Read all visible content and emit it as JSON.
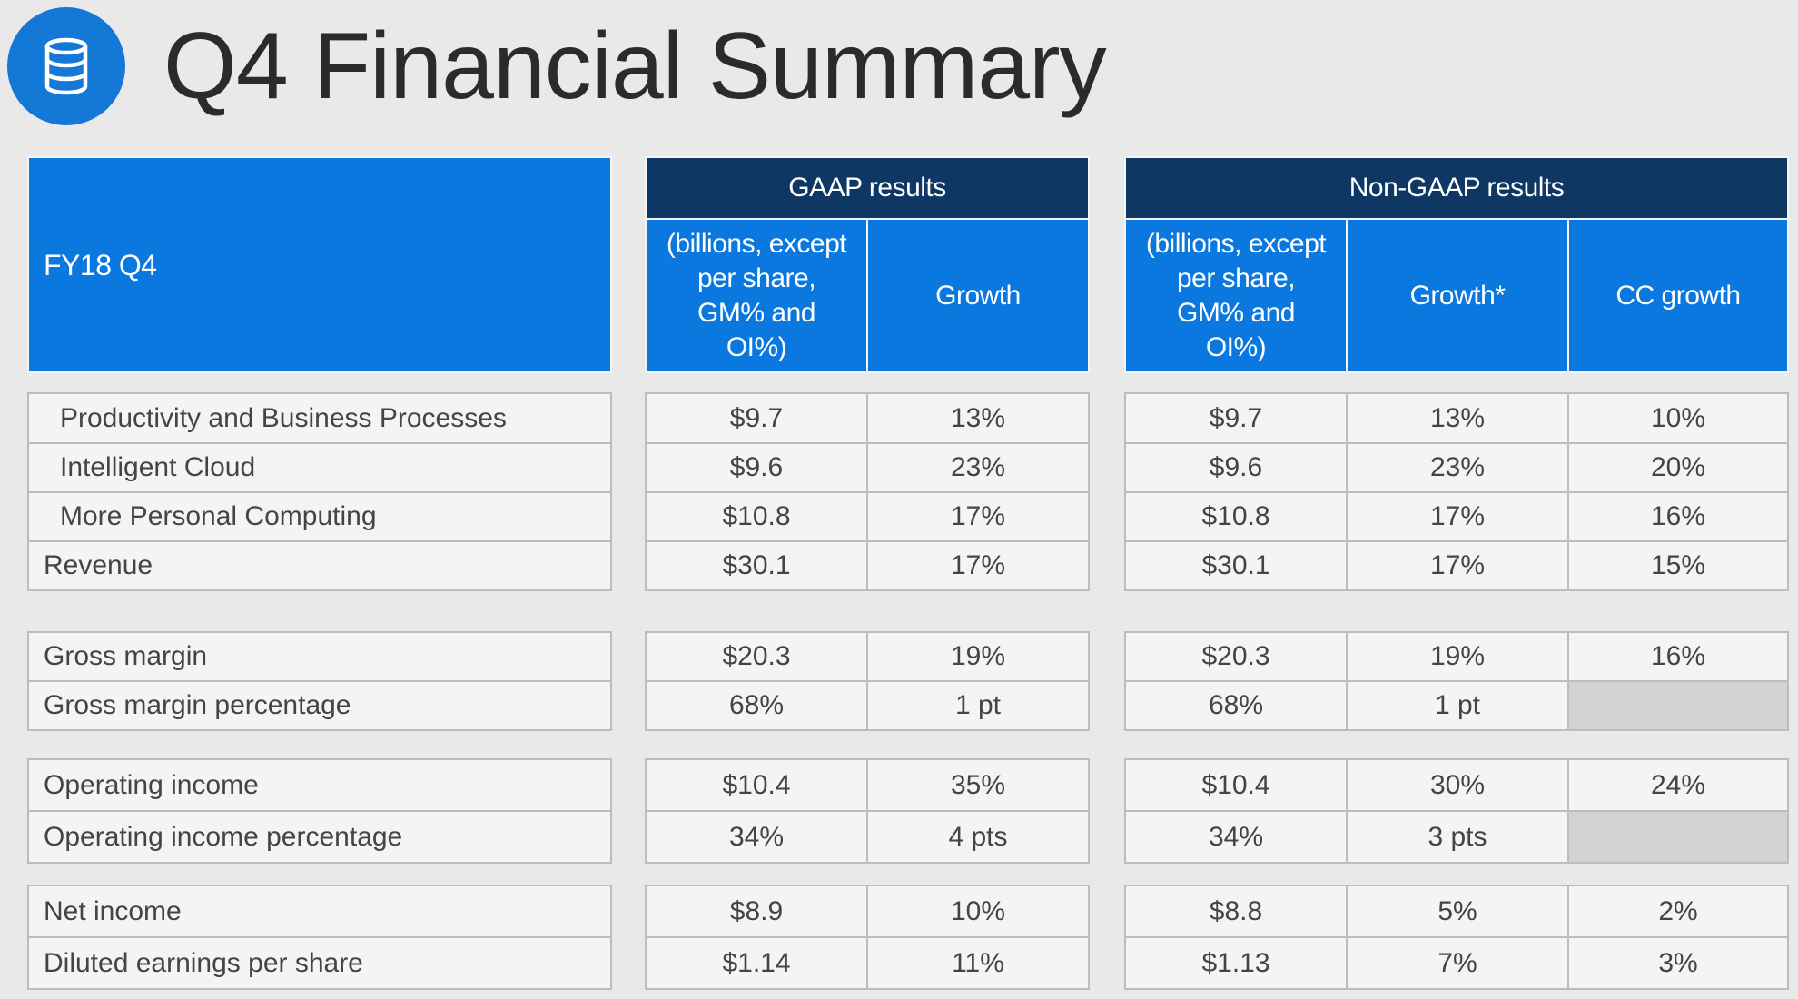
{
  "title": "Q4 Financial Summary",
  "logo_icon": "database-icon",
  "colors": {
    "accent_blue": "#0a78de",
    "dark_navy": "#0e3863",
    "logo_blue": "#1378d6"
  },
  "table": {
    "corner_label": "FY18 Q4",
    "gaap_header": "GAAP results",
    "nongaap_header": "Non-GAAP results",
    "gaap_col_amount": "(billions, except\nper share,\nGM% and\nOI%)",
    "gaap_col_growth": "Growth",
    "nongaap_col_amount": "(billions, except\nper share,\nGM% and\nOI%)",
    "nongaap_col_growth": "Growth*",
    "nongaap_col_cc": "CC growth",
    "rows": [
      {
        "label": "Productivity and Business Processes",
        "gaap_value": "$9.7",
        "gaap_growth": "13%",
        "nongaap_value": "$9.7",
        "nongaap_growth": "13%",
        "cc_growth": "10%"
      },
      {
        "label": "Intelligent Cloud",
        "gaap_value": "$9.6",
        "gaap_growth": "23%",
        "nongaap_value": "$9.6",
        "nongaap_growth": "23%",
        "cc_growth": "20%"
      },
      {
        "label": "More Personal Computing",
        "gaap_value": "$10.8",
        "gaap_growth": "17%",
        "nongaap_value": "$10.8",
        "nongaap_growth": "17%",
        "cc_growth": "16%"
      },
      {
        "label": "Revenue",
        "gaap_value": "$30.1",
        "gaap_growth": "17%",
        "nongaap_value": "$30.1",
        "nongaap_growth": "17%",
        "cc_growth": "15%"
      },
      {
        "label": "Gross margin",
        "gaap_value": "$20.3",
        "gaap_growth": "19%",
        "nongaap_value": "$20.3",
        "nongaap_growth": "19%",
        "cc_growth": "16%"
      },
      {
        "label": "Gross margin percentage",
        "gaap_value": "68%",
        "gaap_growth": "1 pt",
        "nongaap_value": "68%",
        "nongaap_growth": "1 pt",
        "cc_growth": ""
      },
      {
        "label": "Operating income",
        "gaap_value": "$10.4",
        "gaap_growth": "35%",
        "nongaap_value": "$10.4",
        "nongaap_growth": "30%",
        "cc_growth": "24%"
      },
      {
        "label": "Operating income percentage",
        "gaap_value": "34%",
        "gaap_growth": "4 pts",
        "nongaap_value": "34%",
        "nongaap_growth": "3 pts",
        "cc_growth": ""
      },
      {
        "label": "Net income",
        "gaap_value": "$8.9",
        "gaap_growth": "10%",
        "nongaap_value": "$8.8",
        "nongaap_growth": "5%",
        "cc_growth": "2%"
      },
      {
        "label": "Diluted earnings per share",
        "gaap_value": "$1.14",
        "gaap_growth": "11%",
        "nongaap_value": "$1.13",
        "nongaap_growth": "7%",
        "cc_growth": "3%"
      }
    ]
  }
}
